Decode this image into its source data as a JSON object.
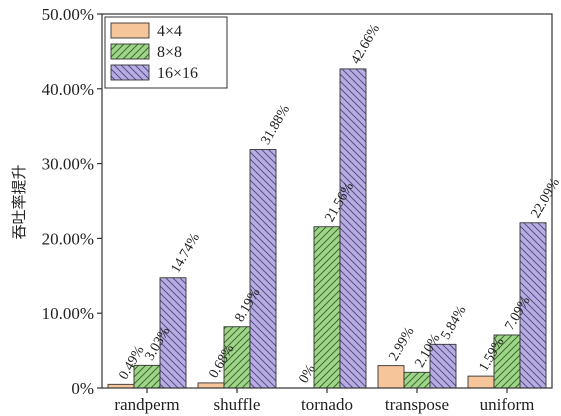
{
  "chart_data": {
    "type": "bar",
    "ylabel": "吞吐率提升",
    "ylim": [
      0,
      50
    ],
    "yticks": [
      "0%",
      "10.00%",
      "20.00%",
      "30.00%",
      "40.00%",
      "50.00%"
    ],
    "yticks_values": [
      0,
      10,
      20,
      30,
      40,
      50
    ],
    "categories": [
      "randperm",
      "shuffle",
      "tornado",
      "transpose",
      "uniform"
    ],
    "legend_position": "top-left",
    "grid": false,
    "series": [
      {
        "name": "4×4",
        "color": "#f7c59a",
        "pattern": "solid",
        "values": [
          0.49,
          0.68,
          0,
          2.99,
          1.59
        ],
        "labels": [
          "0.49%",
          "0.68%",
          "0%",
          "2.99%",
          "1.59%"
        ]
      },
      {
        "name": "8×8",
        "color": "#9fd48a",
        "pattern": "hatch-forward",
        "values": [
          3.03,
          8.19,
          21.56,
          2.1,
          7.09
        ],
        "labels": [
          "3.03%",
          "8.19%",
          "21.56%",
          "2.10%",
          "7.09%"
        ]
      },
      {
        "name": "16×16",
        "color": "#b7ade0",
        "pattern": "hatch-back",
        "values": [
          14.74,
          31.88,
          42.66,
          5.84,
          22.09
        ],
        "labels": [
          "14.74%",
          "31.88%",
          "42.66%",
          "5.84%",
          "22.09%"
        ]
      }
    ]
  }
}
